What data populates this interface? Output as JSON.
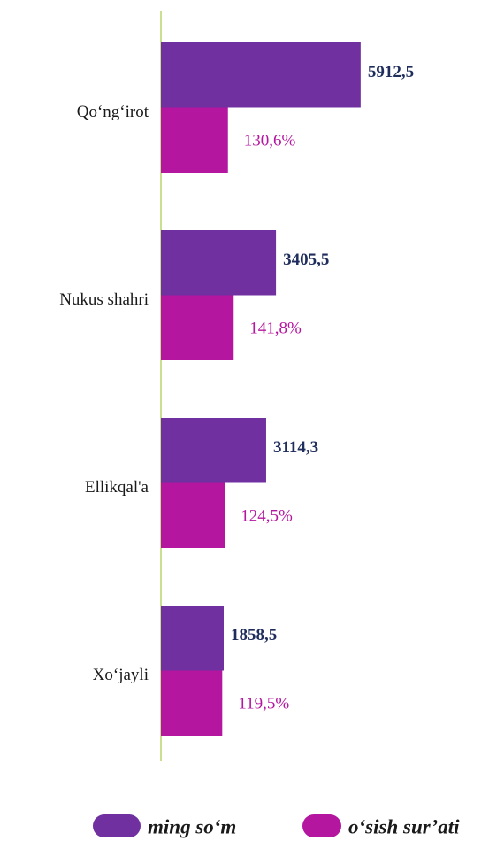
{
  "chart_data": {
    "type": "bar",
    "orientation": "horizontal",
    "categories": [
      "Qo‘ng‘irot",
      "Nukus shahri",
      "Ellikqal'a",
      "Xo‘jayli"
    ],
    "series": [
      {
        "name": "ming so‘m",
        "color": "#7030a0",
        "values": [
          5912.5,
          3405.5,
          3114.3,
          1858.5
        ],
        "value_labels": [
          "5912,5",
          "3405,5",
          "3114,3",
          "1858,5"
        ]
      },
      {
        "name": "o‘sish sur’ati",
        "color": "#b4169f",
        "values": [
          130.6,
          141.8,
          124.5,
          119.5
        ],
        "value_labels": [
          "130,6%",
          "141,8%",
          "124,5%",
          "119,5%"
        ]
      }
    ],
    "legend": "bottom"
  }
}
